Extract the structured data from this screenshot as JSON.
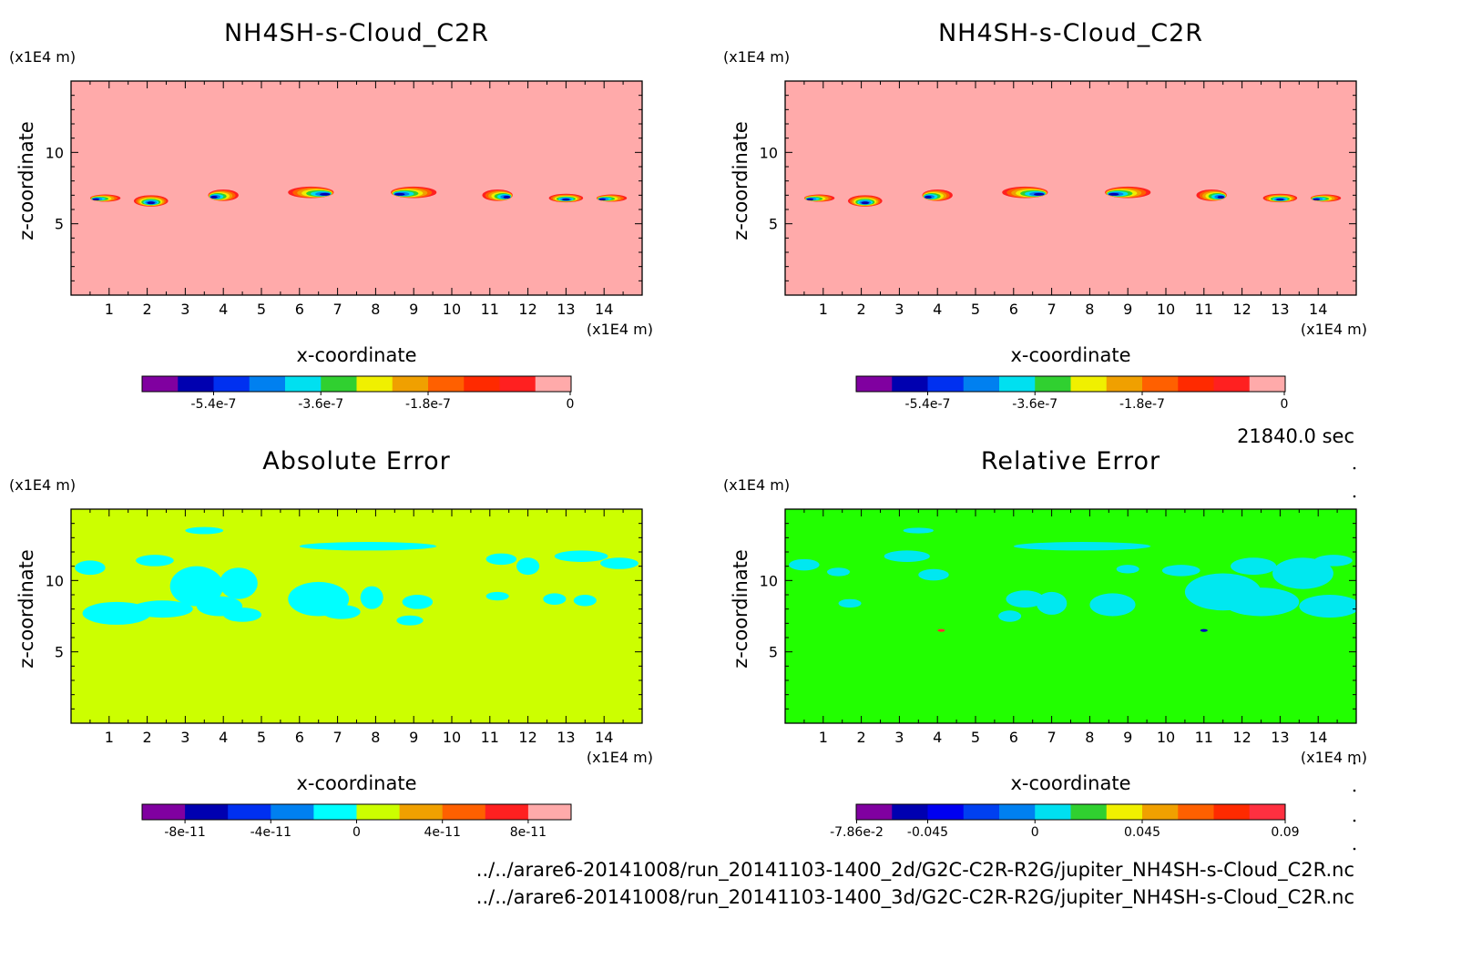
{
  "time_label": "21840.0 sec",
  "files": [
    "../../arare6-20141008/run_20141103-1400_2d/G2C-C2R-R2G/jupiter_NH4SH-s-Cloud_C2R.nc",
    "../../arare6-20141008/run_20141103-1400_3d/G2C-C2R-R2G/jupiter_NH4SH-s-Cloud_C2R.nc"
  ],
  "chart_data": [
    {
      "type": "heatmap",
      "title": "NH4SH-s-Cloud_C2R",
      "xlabel": "x-coordinate",
      "ylabel": "z-coordinate",
      "x_unit": "(x1E4 m)",
      "y_unit": "(x1E4 m)",
      "xlim": [
        0,
        15
      ],
      "ylim": [
        0,
        15
      ],
      "x_ticks": [
        "1",
        "2",
        "3",
        "4",
        "5",
        "6",
        "7",
        "8",
        "9",
        "10",
        "11",
        "12",
        "13",
        "14"
      ],
      "y_ticks": [
        "5",
        "10"
      ],
      "background_color": "#ffaaaa",
      "colorbar": {
        "colors": [
          "#8000a0",
          "#0000b0",
          "#0030f0",
          "#0080f0",
          "#00e0f0",
          "#30d030",
          "#f0f000",
          "#f0a000",
          "#ff6000",
          "#ff2a00",
          "#ff2020",
          "#ffaaaa"
        ],
        "tick_labels": [
          "-5.4e-7",
          "-3.6e-7",
          "-1.8e-7",
          "0"
        ]
      },
      "features": [
        {
          "x": 0.9,
          "z": 6.8,
          "w": 0.8,
          "h": 0.5,
          "tilt": "left"
        },
        {
          "x": 2.1,
          "z": 6.6,
          "w": 0.9,
          "h": 0.8,
          "tilt": "mid"
        },
        {
          "x": 4.0,
          "z": 7.0,
          "w": 0.8,
          "h": 0.8,
          "tilt": "left"
        },
        {
          "x": 6.3,
          "z": 7.2,
          "w": 1.2,
          "h": 0.8,
          "tilt": "right"
        },
        {
          "x": 9.0,
          "z": 7.2,
          "w": 1.2,
          "h": 0.8,
          "tilt": "left"
        },
        {
          "x": 11.2,
          "z": 7.0,
          "w": 0.8,
          "h": 0.8,
          "tilt": "right"
        },
        {
          "x": 13.0,
          "z": 6.8,
          "w": 0.9,
          "h": 0.6,
          "tilt": "mid"
        },
        {
          "x": 14.2,
          "z": 6.8,
          "w": 0.8,
          "h": 0.5,
          "tilt": "left"
        }
      ]
    },
    {
      "type": "heatmap",
      "title": "NH4SH-s-Cloud_C2R",
      "xlabel": "x-coordinate",
      "ylabel": "z-coordinate",
      "x_unit": "(x1E4 m)",
      "y_unit": "(x1E4 m)",
      "xlim": [
        0,
        15
      ],
      "ylim": [
        0,
        15
      ],
      "x_ticks": [
        "1",
        "2",
        "3",
        "4",
        "5",
        "6",
        "7",
        "8",
        "9",
        "10",
        "11",
        "12",
        "13",
        "14"
      ],
      "y_ticks": [
        "5",
        "10"
      ],
      "background_color": "#ffaaaa",
      "colorbar": {
        "colors": [
          "#8000a0",
          "#0000b0",
          "#0030f0",
          "#0080f0",
          "#00e0f0",
          "#30d030",
          "#f0f000",
          "#f0a000",
          "#ff6000",
          "#ff2a00",
          "#ff2020",
          "#ffaaaa"
        ],
        "tick_labels": [
          "-5.4e-7",
          "-3.6e-7",
          "-1.8e-7",
          "0"
        ]
      },
      "features": [
        {
          "x": 0.9,
          "z": 6.8,
          "w": 0.8,
          "h": 0.5,
          "tilt": "left"
        },
        {
          "x": 2.1,
          "z": 6.6,
          "w": 0.9,
          "h": 0.8,
          "tilt": "mid"
        },
        {
          "x": 4.0,
          "z": 7.0,
          "w": 0.8,
          "h": 0.8,
          "tilt": "left"
        },
        {
          "x": 6.3,
          "z": 7.2,
          "w": 1.2,
          "h": 0.8,
          "tilt": "right"
        },
        {
          "x": 9.0,
          "z": 7.2,
          "w": 1.2,
          "h": 0.8,
          "tilt": "left"
        },
        {
          "x": 11.2,
          "z": 7.0,
          "w": 0.8,
          "h": 0.8,
          "tilt": "right"
        },
        {
          "x": 13.0,
          "z": 6.8,
          "w": 0.9,
          "h": 0.6,
          "tilt": "mid"
        },
        {
          "x": 14.2,
          "z": 6.8,
          "w": 0.8,
          "h": 0.5,
          "tilt": "left"
        }
      ]
    },
    {
      "type": "heatmap",
      "title": "Absolute Error",
      "xlabel": "x-coordinate",
      "ylabel": "z-coordinate",
      "x_unit": "(x1E4 m)",
      "y_unit": "(x1E4 m)",
      "xlim": [
        0,
        15
      ],
      "ylim": [
        0,
        15
      ],
      "x_ticks": [
        "1",
        "2",
        "3",
        "4",
        "5",
        "6",
        "7",
        "8",
        "9",
        "10",
        "11",
        "12",
        "13",
        "14"
      ],
      "y_ticks": [
        "5",
        "10"
      ],
      "background_color": "#ccff00",
      "patch_color": "#00ffff",
      "colorbar": {
        "colors": [
          "#8000a0",
          "#0000b0",
          "#0030f0",
          "#0080f0",
          "#00ffff",
          "#ccff00",
          "#f0a000",
          "#ff6000",
          "#ff2020",
          "#ffaaaa"
        ],
        "tick_labels": [
          "-8e-11",
          "-4e-11",
          "0",
          "4e-11",
          "8e-11"
        ]
      },
      "patches": [
        {
          "x": 0.5,
          "z": 10.9,
          "rx": 0.4,
          "rz": 0.5
        },
        {
          "x": 1.2,
          "z": 7.7,
          "rx": 0.9,
          "rz": 0.8
        },
        {
          "x": 2.4,
          "z": 8.0,
          "rx": 0.8,
          "rz": 0.6
        },
        {
          "x": 2.2,
          "z": 11.4,
          "rx": 0.5,
          "rz": 0.4
        },
        {
          "x": 3.3,
          "z": 9.6,
          "rx": 0.7,
          "rz": 1.4
        },
        {
          "x": 3.9,
          "z": 8.2,
          "rx": 0.6,
          "rz": 0.7
        },
        {
          "x": 4.4,
          "z": 9.8,
          "rx": 0.5,
          "rz": 1.1
        },
        {
          "x": 4.5,
          "z": 7.6,
          "rx": 0.5,
          "rz": 0.5
        },
        {
          "x": 3.5,
          "z": 13.5,
          "rx": 0.5,
          "rz": 0.25
        },
        {
          "x": 6.5,
          "z": 8.7,
          "rx": 0.8,
          "rz": 1.2
        },
        {
          "x": 7.1,
          "z": 7.8,
          "rx": 0.5,
          "rz": 0.5
        },
        {
          "x": 7.8,
          "z": 12.4,
          "rx": 1.8,
          "rz": 0.3
        },
        {
          "x": 7.9,
          "z": 8.8,
          "rx": 0.3,
          "rz": 0.8
        },
        {
          "x": 9.1,
          "z": 8.5,
          "rx": 0.4,
          "rz": 0.5
        },
        {
          "x": 8.9,
          "z": 7.2,
          "rx": 0.35,
          "rz": 0.35
        },
        {
          "x": 11.3,
          "z": 11.5,
          "rx": 0.4,
          "rz": 0.4
        },
        {
          "x": 11.2,
          "z": 8.9,
          "rx": 0.3,
          "rz": 0.3
        },
        {
          "x": 12.0,
          "z": 11.0,
          "rx": 0.3,
          "rz": 0.6
        },
        {
          "x": 12.7,
          "z": 8.7,
          "rx": 0.3,
          "rz": 0.4
        },
        {
          "x": 13.4,
          "z": 11.7,
          "rx": 0.7,
          "rz": 0.4
        },
        {
          "x": 14.4,
          "z": 11.2,
          "rx": 0.5,
          "rz": 0.4
        },
        {
          "x": 13.5,
          "z": 8.6,
          "rx": 0.3,
          "rz": 0.4
        }
      ]
    },
    {
      "type": "heatmap",
      "title": "Relative Error",
      "xlabel": "x-coordinate",
      "ylabel": "z-coordinate",
      "x_unit": "(x1E4 m)",
      "y_unit": "(x1E4 m)",
      "xlim": [
        0,
        15
      ],
      "ylim": [
        0,
        15
      ],
      "x_ticks": [
        "1",
        "2",
        "3",
        "4",
        "5",
        "6",
        "7",
        "8",
        "9",
        "10",
        "11",
        "12",
        "13",
        "14"
      ],
      "y_ticks": [
        "5",
        "10"
      ],
      "background_color": "#22ff00",
      "patch_color": "#00e8f0",
      "colorbar": {
        "colors": [
          "#8000a0",
          "#0000b0",
          "#0000f0",
          "#0040f0",
          "#0080f0",
          "#00e0f0",
          "#30d030",
          "#f0f000",
          "#f0a000",
          "#ff6000",
          "#ff2a00",
          "#ff3040"
        ],
        "tick_labels": [
          "-7.86e-2",
          "-0.045",
          "0",
          "0.045",
          "0.09"
        ]
      },
      "patches": [
        {
          "x": 0.5,
          "z": 11.1,
          "rx": 0.4,
          "rz": 0.4
        },
        {
          "x": 1.4,
          "z": 10.6,
          "rx": 0.3,
          "rz": 0.3
        },
        {
          "x": 1.7,
          "z": 8.4,
          "rx": 0.3,
          "rz": 0.3
        },
        {
          "x": 3.2,
          "z": 11.7,
          "rx": 0.6,
          "rz": 0.4
        },
        {
          "x": 3.5,
          "z": 13.5,
          "rx": 0.4,
          "rz": 0.2
        },
        {
          "x": 3.9,
          "z": 10.4,
          "rx": 0.4,
          "rz": 0.4
        },
        {
          "x": 7.8,
          "z": 12.4,
          "rx": 1.8,
          "rz": 0.3
        },
        {
          "x": 6.3,
          "z": 8.7,
          "rx": 0.5,
          "rz": 0.6
        },
        {
          "x": 5.9,
          "z": 7.5,
          "rx": 0.3,
          "rz": 0.4
        },
        {
          "x": 7.0,
          "z": 8.4,
          "rx": 0.4,
          "rz": 0.8
        },
        {
          "x": 8.6,
          "z": 8.3,
          "rx": 0.6,
          "rz": 0.8
        },
        {
          "x": 9.0,
          "z": 10.8,
          "rx": 0.3,
          "rz": 0.3
        },
        {
          "x": 10.4,
          "z": 10.7,
          "rx": 0.5,
          "rz": 0.4
        },
        {
          "x": 11.5,
          "z": 9.2,
          "rx": 1.0,
          "rz": 1.3
        },
        {
          "x": 12.5,
          "z": 8.5,
          "rx": 1.0,
          "rz": 1.0
        },
        {
          "x": 12.3,
          "z": 11.0,
          "rx": 0.6,
          "rz": 0.6
        },
        {
          "x": 13.6,
          "z": 10.5,
          "rx": 0.8,
          "rz": 1.1
        },
        {
          "x": 14.3,
          "z": 8.2,
          "rx": 0.8,
          "rz": 0.8
        },
        {
          "x": 14.4,
          "z": 11.4,
          "rx": 0.5,
          "rz": 0.4
        }
      ],
      "specks": [
        {
          "x": 4.1,
          "z": 6.5,
          "color": "#ff3030"
        },
        {
          "x": 11.0,
          "z": 6.5,
          "color": "#0000c0"
        }
      ]
    }
  ]
}
